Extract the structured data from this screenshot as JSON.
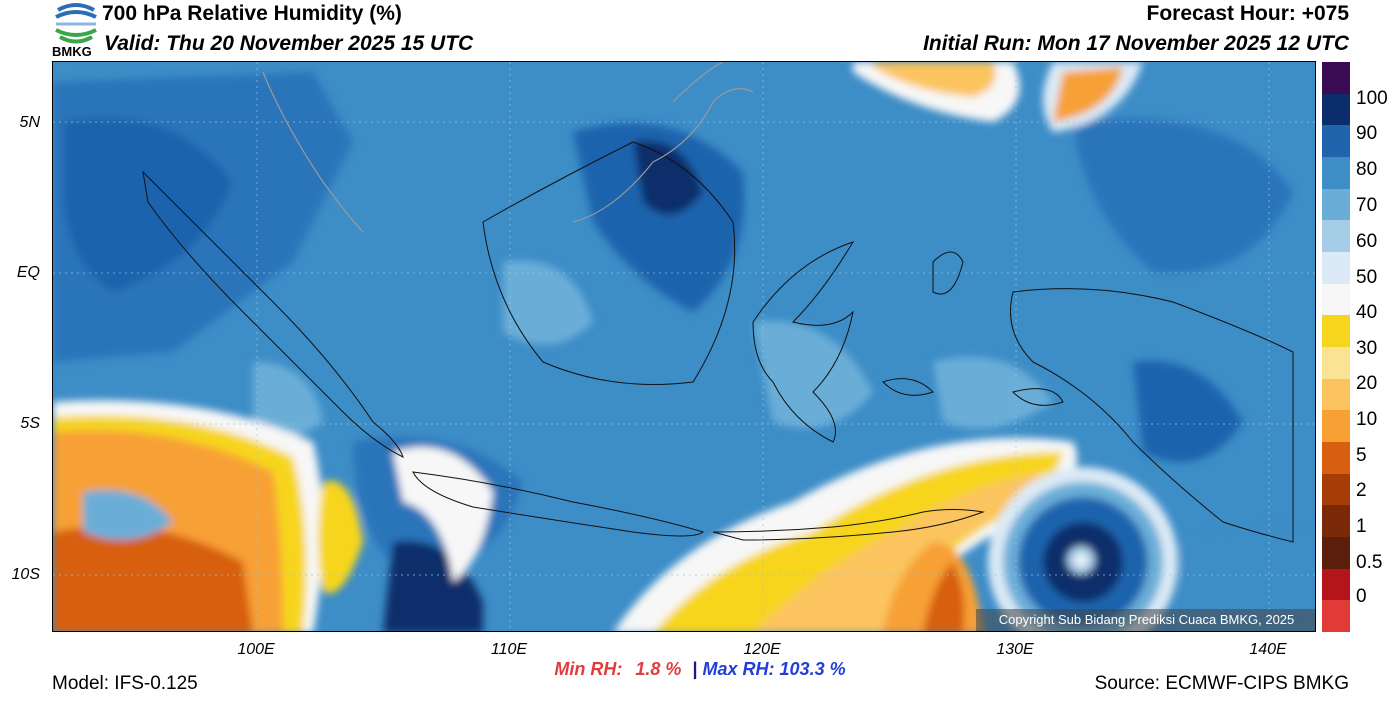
{
  "header": {
    "title": "700 hPa Relative Humidity (%)",
    "valid": "Valid: Thu 20 November 2025 15 UTC",
    "forecast_hour": "Forecast Hour: +075",
    "initial_run": "Initial Run: Mon 17 November 2025 12 UTC"
  },
  "logo": {
    "text": "BMKG",
    "colors": {
      "blue": "#2a6fb6",
      "green": "#3aa54a"
    }
  },
  "map": {
    "lat_labels": [
      "5N",
      "EQ",
      "5S",
      "10S"
    ],
    "lon_labels": [
      "100E",
      "110E",
      "120E",
      "130E",
      "140E"
    ],
    "copyright": "Copyright Sub Bidang Prediksi Cuaca BMKG, 2025"
  },
  "colorbar": {
    "labels": [
      "100",
      "90",
      "80",
      "70",
      "60",
      "50",
      "40",
      "30",
      "20",
      "10",
      "5",
      "2",
      "1",
      "0.5",
      "0"
    ],
    "colors": [
      "#3a0a52",
      "#0c2d6b",
      "#1f64ad",
      "#3d8dc7",
      "#6aaed8",
      "#a6cde8",
      "#dbeaf6",
      "#f7f7f7",
      "#f7d51d",
      "#fae392",
      "#fbc45e",
      "#f7a034",
      "#d75f0f",
      "#a63c06",
      "#7a2a08",
      "#5a1e0a",
      "#b4151b",
      "#e23a36"
    ]
  },
  "stats": {
    "min_label": "Min RH:",
    "min_value": "1.8 %",
    "separator": "|",
    "max_label": "Max RH:",
    "max_value": "103.3 %"
  },
  "footer": {
    "model": "Model: IFS-0.125",
    "source": "Source: ECMWF-CIPS BMKG"
  }
}
